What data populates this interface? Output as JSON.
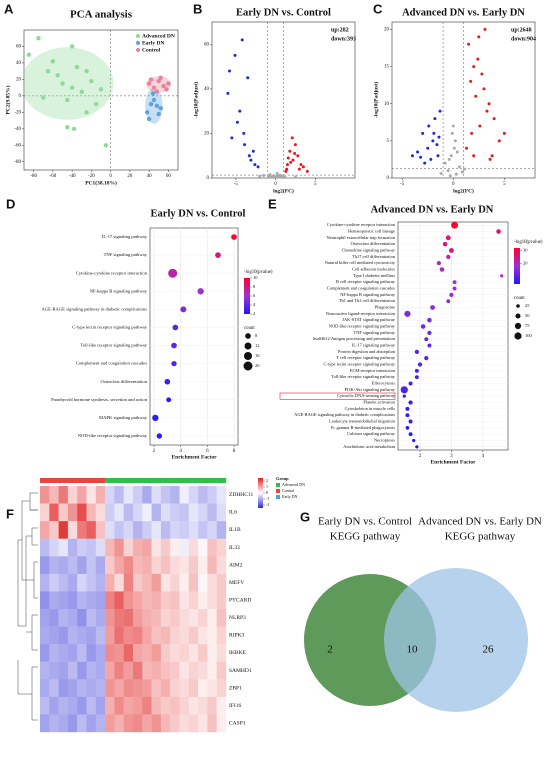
{
  "chart_data": [
    {
      "panel": "A",
      "type": "scatter",
      "title": "PCA analysis",
      "xlabel": "PC1(38.18%)",
      "ylabel": "PC2(9.85%)",
      "xlim": [
        -90,
        70
      ],
      "ylim": [
        -90,
        80
      ],
      "xticks": [
        -80,
        -60,
        -40,
        -20,
        0,
        20,
        40,
        60
      ],
      "yticks": [
        -80,
        -60,
        -40,
        -20,
        0,
        20,
        40,
        60
      ],
      "legend": "top-right",
      "zero_lines": true,
      "series": [
        {
          "name": "Advanced DN",
          "color": "#8fd99a",
          "x": [
            -75,
            -40,
            -60,
            -65,
            -55,
            -35,
            -25,
            -20,
            -50,
            -40,
            -30,
            -45,
            -70,
            -15,
            -10,
            -45,
            -38,
            -25,
            -5,
            -85
          ],
          "values": [
            70,
            60,
            42,
            30,
            25,
            35,
            30,
            18,
            15,
            10,
            5,
            -5,
            -2,
            -10,
            8,
            -38,
            -40,
            -20,
            -60,
            50
          ]
        },
        {
          "name": "Early DN",
          "color": "#5ea3d9",
          "x": [
            38,
            42,
            45,
            48,
            50,
            40,
            44,
            52
          ],
          "values": [
            -20,
            -10,
            -5,
            -12,
            -22,
            -28,
            3,
            -15
          ]
        },
        {
          "name": "Control",
          "color": "#e8829a",
          "x": [
            40,
            45,
            50,
            55,
            48,
            58,
            42,
            60,
            52
          ],
          "values": [
            15,
            10,
            18,
            12,
            5,
            8,
            20,
            15,
            22
          ]
        }
      ]
    },
    {
      "panel": "B",
      "type": "scatter",
      "title": "Early DN vs. Control",
      "xlabel": "log2(FC)",
      "ylabel": "-log10(Padjust)",
      "annotations": [
        "up:282",
        "down:393"
      ],
      "xlim": [
        -8,
        10
      ],
      "ylim": [
        0,
        70
      ],
      "xticks": [
        -5,
        0,
        5
      ],
      "yticks": [
        0,
        20,
        40,
        60
      ],
      "vlines": [
        -1,
        1
      ],
      "hline": 1.3,
      "series": [
        {
          "color": "#aaaaaa",
          "x": [
            -0.8,
            -0.5,
            0.2,
            0.6,
            -0.3,
            0.9,
            0.4,
            -0.7,
            0.1,
            -0.2,
            0.7,
            -0.9,
            0.5,
            -0.4,
            0.3,
            2.5,
            -2.0,
            1.2,
            -1.5,
            0.8
          ],
          "values": [
            1,
            0.5,
            2,
            1.2,
            0.3,
            0.8,
            0.2,
            1.5,
            0.6,
            1.0,
            0.4,
            0.9,
            1.1,
            0.2,
            0.7,
            0.5,
            0.8,
            0.3,
            1.1,
            0.2
          ]
        },
        {
          "color": "#1f2bd4",
          "x": [
            -4.2,
            -5.1,
            -3.5,
            -6.0,
            -2.8,
            -4.8,
            -3.1,
            -5.5,
            -2.2,
            -3.9,
            -4.5,
            -2.6,
            -5.8,
            -3.3,
            -4.0
          ],
          "values": [
            62,
            55,
            45,
            38,
            12,
            25,
            8,
            18,
            5,
            15,
            30,
            6,
            48,
            10,
            20
          ]
        },
        {
          "color": "#e41a1c",
          "x": [
            1.5,
            2.2,
            1.8,
            3.0,
            2.5,
            1.3,
            2.8,
            3.5,
            1.9,
            2.1,
            4.0,
            1.6,
            2.4,
            3.2,
            1.4
          ],
          "values": [
            6,
            8,
            12,
            4,
            15,
            3,
            10,
            5,
            7,
            18,
            3,
            9,
            11,
            6,
            4
          ]
        }
      ]
    },
    {
      "panel": "C",
      "type": "scatter",
      "title": "Advanced DN vs. Early DN",
      "xlabel": "log2(FC)",
      "ylabel": "-log10(Padjust)",
      "annotations": [
        "up:2648",
        "down:904"
      ],
      "xlim": [
        -6,
        8
      ],
      "ylim": [
        0,
        21
      ],
      "xticks": [
        -5,
        0,
        5
      ],
      "yticks": [
        0,
        5,
        10,
        15,
        20
      ],
      "vlines": [
        -1,
        1
      ],
      "hline": 1.3,
      "series": [
        {
          "color": "#aaaaaa",
          "x": [
            -0.5,
            0.3,
            -0.8,
            0.6,
            -0.2,
            0.9,
            -1.2,
            1.1,
            0.1,
            -0.4,
            0.2,
            -0.1,
            0.4,
            -0.3,
            0.0
          ],
          "values": [
            1,
            0.5,
            2,
            1.5,
            3,
            0.8,
            0.6,
            1.2,
            4,
            2.5,
            5,
            6,
            3.5,
            0.3,
            7
          ]
        },
        {
          "color": "#1f2bd4",
          "x": [
            -1.5,
            -2.0,
            -2.5,
            -3.0,
            -1.8,
            -2.2,
            -3.5,
            -1.3,
            -2.8,
            -1.6,
            -4.0,
            -2.4,
            -1.9,
            -3.2,
            -1.4
          ],
          "values": [
            3,
            5,
            4,
            6,
            8,
            2.5,
            3.5,
            9,
            2,
            4.5,
            3,
            7,
            6,
            2.8,
            5.5
          ]
        },
        {
          "color": "#e41a1c",
          "x": [
            1.5,
            2.0,
            2.5,
            3.0,
            3.5,
            4.0,
            1.8,
            2.2,
            2.8,
            3.3,
            4.5,
            1.3,
            2.6,
            3.8,
            1.7,
            2.4,
            3.1,
            5.0,
            2.0,
            3.6
          ],
          "values": [
            18,
            15,
            19,
            12,
            10,
            8,
            6,
            11,
            14,
            9,
            5,
            4,
            7,
            3,
            13,
            16,
            20,
            6,
            3,
            2.5
          ]
        }
      ]
    },
    {
      "panel": "D",
      "type": "bubble",
      "title": "Early DN vs. Control",
      "xlabel": "Enrichment Factor",
      "categories": [
        "IL-17 signaling pathway",
        "TNF signaling pathway",
        "Cytokine-cytokine receptor interaction",
        "NF-kappa B signaling pathway",
        "AGE-RAGE signaling pathway in diabetic complications",
        "C-type lectin receptor signaling pathway",
        "Toll-like receptor signaling pathway",
        "Complement and coagulation cascades",
        "Osteoclast differentiation",
        "Parathyroid hormone synthesis, secretion and action",
        "MAPK signaling pathway",
        "NOD-like receptor signaling pathway"
      ],
      "values": [
        8.0,
        6.8,
        3.4,
        5.5,
        4.2,
        3.6,
        3.5,
        3.5,
        3.0,
        3.1,
        2.1,
        2.4
      ],
      "sizes": [
        8,
        8,
        20,
        10,
        9,
        8,
        8,
        7,
        8,
        6,
        10,
        7
      ],
      "pvalues": [
        10,
        8,
        7,
        6,
        5,
        4,
        4,
        3.5,
        3,
        2.5,
        2.5,
        2.2
      ],
      "xlim": [
        1.7,
        8.3
      ],
      "xticks": [
        2,
        4,
        6,
        8
      ],
      "grid": true,
      "color_label": "-log10(pvalue)",
      "colorlim": [
        2,
        10
      ],
      "colorticks": [
        2,
        4,
        6,
        8,
        10
      ],
      "size_label": "count",
      "sizeticks": [
        8,
        12,
        16,
        20
      ]
    },
    {
      "panel": "E",
      "type": "bubble",
      "title": "Advanced DN vs. Early DN",
      "xlabel": "Enrichment Factor",
      "categories": [
        "Cytokine-cytokine receptor interaction",
        "Hematopoietic cell lineage",
        "Neutrophil extracellular trap formation",
        "Osteoclast differentiation",
        "Chemokine signaling pathway",
        "Th17 cell differentiation",
        "Natural killer cell mediated cytotoxicity",
        "Cell adhesion molecules",
        "Type I diabetes mellitus",
        "B cell receptor signaling pathway",
        "Complement and coagulation cascades",
        "NF-kappa B signaling pathway",
        "Th1 and Th2 cell differentiation",
        "Phagosome",
        "Neuroactive ligand-receptor interaction",
        "JAK-STAT signaling pathway",
        "NOD-like receptor signaling pathway",
        "TNF signaling pathway",
        "hsa04612:Antigen processing and presentation",
        "IL-17 signaling pathway",
        "Protein digestion and absorption",
        "T cell receptor signaling pathway",
        "C-type lectin receptor signaling pathway",
        "ECM-receptor interaction",
        "Toll-like receptor signaling pathway",
        "Efferocytosis",
        "PI3K-Akt signaling pathway",
        "Cytosolic DNA-sensing pathway",
        "Platelet activation",
        "Cytoskeleton in muscle cells",
        "AGE-RAGE signaling pathway in diabetic complications",
        "Leukocyte transendothelial migration",
        "Fc gamma R-mediated phagocytosis",
        "Calcium signaling pathway",
        "Necroptosis",
        "Arachidonic acid metabolism"
      ],
      "values": [
        3.1,
        4.5,
        2.9,
        2.8,
        3.0,
        2.9,
        2.6,
        2.7,
        4.6,
        3.1,
        3.1,
        3.0,
        2.9,
        2.4,
        1.6,
        2.3,
        2.1,
        2.3,
        2.2,
        2.3,
        1.9,
        2.2,
        2.0,
        1.9,
        1.9,
        1.7,
        1.5,
        1.5,
        1.7,
        1.6,
        1.6,
        1.7,
        1.6,
        1.7,
        1.8,
        1.9
      ],
      "sizes": [
        90,
        40,
        45,
        40,
        45,
        35,
        35,
        40,
        20,
        30,
        30,
        35,
        30,
        45,
        75,
        40,
        40,
        35,
        30,
        30,
        35,
        35,
        35,
        30,
        30,
        30,
        100,
        20,
        35,
        30,
        30,
        30,
        25,
        30,
        20,
        20
      ],
      "pvalues": [
        32,
        28,
        26,
        24,
        24,
        22,
        20,
        20,
        18,
        18,
        18,
        17,
        16,
        16,
        15,
        14,
        13,
        12,
        11,
        11,
        10,
        10,
        10,
        9,
        9,
        8,
        9,
        6,
        7,
        6,
        6,
        6,
        5,
        5,
        4,
        4
      ],
      "xlim": [
        1.3,
        4.8
      ],
      "xticks": [
        2,
        3,
        4
      ],
      "grid": true,
      "color_label": "-log10(pvalue)",
      "colorlim": [
        4,
        32
      ],
      "colorticks": [
        20,
        30
      ],
      "size_label": "count",
      "sizeticks": [
        25,
        50,
        75,
        100
      ]
    },
    {
      "panel": "F",
      "type": "heatmap",
      "legend_title": "Group",
      "groups": [
        {
          "name": "Advanced DN",
          "color": "#2fbf4a"
        },
        {
          "name": "Control",
          "color": "#e8463c"
        },
        {
          "name": "Early DN",
          "color": "#5b9bd5"
        }
      ],
      "column_group": [
        1,
        1,
        1,
        1,
        1,
        1,
        1,
        0,
        0,
        0,
        0,
        0,
        0,
        0,
        0,
        0,
        0,
        0,
        0,
        0
      ],
      "rows": [
        "ZDHHC11",
        "IL6",
        "IL1B",
        "IL33",
        "AIM2",
        "MEFV",
        "PYCARD",
        "NLRP3",
        "RIPK3",
        "IKBKE",
        "SAMHD1",
        "ZBP1",
        "IFI16",
        "CASP1"
      ],
      "colorlim": [
        -2.5,
        2.5
      ],
      "colorticks": [
        -2,
        -1,
        0,
        1,
        2
      ],
      "values": [
        [
          1.2,
          0.8,
          1.5,
          0.5,
          1.0,
          0.3,
          0.9,
          -0.5,
          -0.8,
          -0.3,
          -0.6,
          -1.0,
          -0.4,
          -0.7,
          -0.9,
          -0.2,
          -0.5,
          -0.8,
          -0.6,
          -0.3
        ],
        [
          0.5,
          1.8,
          0.6,
          1.2,
          2.0,
          0.8,
          0.4,
          -0.6,
          -0.3,
          -0.8,
          -0.5,
          -0.2,
          -0.9,
          -0.4,
          -0.6,
          -0.7,
          -0.3,
          -0.5,
          -0.8,
          -0.4
        ],
        [
          1.0,
          0.6,
          2.2,
          0.4,
          1.5,
          1.8,
          0.7,
          -0.4,
          -0.7,
          -0.5,
          -0.9,
          -0.6,
          -0.3,
          -0.8,
          -0.5,
          -0.6,
          -0.4,
          -0.7,
          -0.5,
          -0.9
        ],
        [
          -0.8,
          -0.5,
          -0.3,
          -0.9,
          -0.6,
          -0.7,
          -0.4,
          0.8,
          1.2,
          0.5,
          0.9,
          1.0,
          0.3,
          0.6,
          0.2,
          -0.2,
          0.4,
          0.1,
          0.7,
          0.5
        ],
        [
          -1.2,
          -0.9,
          -1.0,
          -0.8,
          -1.1,
          -0.7,
          -1.0,
          0.6,
          1.0,
          1.3,
          0.8,
          0.9,
          0.5,
          0.7,
          0.4,
          0.3,
          0.6,
          0.2,
          0.8,
          0.4
        ],
        [
          -0.9,
          -0.6,
          -0.8,
          -1.0,
          -0.5,
          -0.7,
          -0.9,
          0.9,
          0.4,
          1.4,
          0.6,
          0.8,
          1.1,
          0.3,
          0.5,
          0.2,
          0.7,
          0.1,
          0.4,
          0.6
        ],
        [
          -1.3,
          -1.0,
          -1.1,
          -1.2,
          -0.9,
          -1.0,
          -1.1,
          1.4,
          1.8,
          1.2,
          1.0,
          0.8,
          0.9,
          0.6,
          0.7,
          0.3,
          0.5,
          0.2,
          0.4,
          0.6
        ],
        [
          -1.1,
          -1.2,
          -0.9,
          -1.0,
          -1.3,
          -0.8,
          -1.0,
          1.2,
          1.5,
          1.6,
          1.1,
          0.9,
          0.8,
          0.5,
          0.6,
          0.4,
          0.3,
          0.5,
          0.2,
          0.7
        ],
        [
          -1.0,
          -1.1,
          -1.2,
          -0.9,
          -1.0,
          -1.1,
          -0.8,
          1.1,
          1.6,
          1.3,
          1.4,
          1.0,
          0.7,
          0.8,
          0.5,
          0.4,
          0.6,
          0.3,
          0.2,
          0.5
        ],
        [
          -1.2,
          -0.9,
          -1.0,
          -1.1,
          -0.8,
          -1.2,
          -1.0,
          1.3,
          1.2,
          1.7,
          1.0,
          0.9,
          1.1,
          0.6,
          0.4,
          0.5,
          0.3,
          0.6,
          0.2,
          0.4
        ],
        [
          -0.9,
          -1.0,
          -1.1,
          -0.8,
          -1.2,
          -0.9,
          -1.0,
          1.0,
          1.4,
          1.1,
          1.5,
          0.8,
          0.9,
          0.7,
          0.6,
          0.3,
          0.5,
          0.4,
          0.2,
          0.6
        ],
        [
          -1.0,
          -0.8,
          -1.2,
          -1.1,
          -0.9,
          -1.0,
          -0.9,
          1.2,
          1.0,
          1.3,
          1.2,
          1.1,
          0.7,
          0.9,
          0.5,
          0.4,
          0.6,
          0.2,
          0.3,
          0.5
        ],
        [
          -0.8,
          -1.1,
          -0.9,
          -1.0,
          -1.2,
          -0.8,
          -1.1,
          0.9,
          1.3,
          1.0,
          1.1,
          1.4,
          0.8,
          0.6,
          0.7,
          0.5,
          0.3,
          0.4,
          0.6,
          0.2
        ],
        [
          -1.1,
          -0.9,
          -1.0,
          -1.2,
          -0.8,
          -1.1,
          -0.9,
          1.1,
          0.9,
          1.2,
          1.3,
          1.0,
          1.2,
          0.8,
          0.6,
          0.4,
          0.5,
          0.3,
          0.7,
          0.2
        ]
      ]
    },
    {
      "panel": "G",
      "type": "venn",
      "sets": [
        {
          "labels": [
            "Early DN vs. Control",
            "KEGG pathway"
          ],
          "color": "#5e9a5a",
          "only": 2
        },
        {
          "labels": [
            "Advanced DN vs. Early DN",
            "KEGG pathway"
          ],
          "color": "#9dc3e6",
          "only": 26
        }
      ],
      "overlap": 10
    }
  ]
}
